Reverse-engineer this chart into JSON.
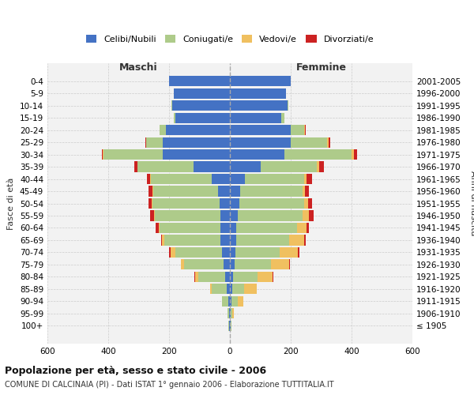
{
  "age_groups": [
    "100+",
    "95-99",
    "90-94",
    "85-89",
    "80-84",
    "75-79",
    "70-74",
    "65-69",
    "60-64",
    "55-59",
    "50-54",
    "45-49",
    "40-44",
    "35-39",
    "30-34",
    "25-29",
    "20-24",
    "15-19",
    "10-14",
    "5-9",
    "0-4"
  ],
  "birth_years": [
    "≤ 1905",
    "1906-1910",
    "1911-1915",
    "1916-1920",
    "1921-1925",
    "1926-1930",
    "1931-1935",
    "1936-1940",
    "1941-1945",
    "1946-1950",
    "1951-1955",
    "1956-1960",
    "1961-1965",
    "1966-1970",
    "1971-1975",
    "1976-1980",
    "1981-1985",
    "1986-1990",
    "1991-1995",
    "1996-2000",
    "2001-2005"
  ],
  "males": {
    "celibe": [
      2,
      3,
      5,
      10,
      15,
      20,
      25,
      30,
      30,
      32,
      35,
      38,
      60,
      120,
      220,
      220,
      210,
      180,
      190,
      185,
      200
    ],
    "coniugato": [
      2,
      5,
      20,
      50,
      90,
      130,
      155,
      185,
      200,
      215,
      220,
      215,
      200,
      185,
      195,
      55,
      20,
      5,
      2,
      0,
      0
    ],
    "vedovo": [
      0,
      0,
      2,
      5,
      10,
      10,
      15,
      8,
      5,
      3,
      2,
      2,
      2,
      0,
      2,
      0,
      0,
      0,
      0,
      0,
      0
    ],
    "divorziato": [
      0,
      0,
      0,
      0,
      2,
      2,
      5,
      3,
      8,
      12,
      10,
      12,
      12,
      10,
      5,
      3,
      2,
      0,
      0,
      0,
      0
    ]
  },
  "females": {
    "nubile": [
      2,
      3,
      5,
      8,
      10,
      15,
      18,
      20,
      22,
      25,
      30,
      35,
      50,
      100,
      180,
      200,
      200,
      170,
      190,
      185,
      200
    ],
    "coniugata": [
      2,
      5,
      20,
      40,
      80,
      120,
      145,
      175,
      200,
      215,
      215,
      205,
      195,
      185,
      220,
      120,
      45,
      10,
      2,
      0,
      0
    ],
    "vedova": [
      0,
      5,
      20,
      40,
      50,
      60,
      60,
      50,
      30,
      20,
      12,
      8,
      8,
      8,
      8,
      5,
      2,
      0,
      0,
      0,
      0
    ],
    "divorziata": [
      0,
      0,
      0,
      0,
      2,
      2,
      5,
      5,
      8,
      15,
      12,
      12,
      18,
      15,
      10,
      5,
      2,
      0,
      0,
      0,
      0
    ]
  },
  "colors": {
    "celibe": "#4472C4",
    "coniugato": "#AECB8A",
    "vedovo": "#F0C060",
    "divorziato": "#CC2222"
  },
  "xlim": 600,
  "title": "Popolazione per età, sesso e stato civile - 2006",
  "subtitle": "COMUNE DI CALCINAIA (PI) - Dati ISTAT 1° gennaio 2006 - Elaborazione TUTTITALIA.IT",
  "ylabel_left": "Fasce di età",
  "ylabel_right": "Anni di nascita",
  "xlabel_maschi": "Maschi",
  "xlabel_femmine": "Femmine",
  "bg_color": "#FFFFFF",
  "grid_color": "#CCCCCC"
}
